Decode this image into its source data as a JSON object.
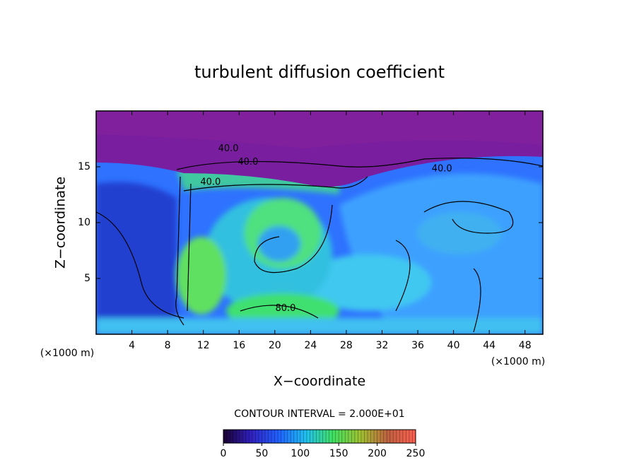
{
  "chart_data": {
    "type": "contour",
    "title": "turbulent diffusion coefficient",
    "xlabel": "X−coordinate",
    "ylabel": "Z−coordinate",
    "xunit": "(×1000 m)",
    "yunit": "(×1000 m)",
    "xlim": [
      0,
      50
    ],
    "ylim": [
      0,
      20
    ],
    "xticks": [
      4,
      8,
      12,
      16,
      20,
      24,
      28,
      32,
      36,
      40,
      44,
      48
    ],
    "yticks": [
      5,
      10,
      15
    ],
    "contour_interval_label": "CONTOUR INTERVAL = 2.000E+01",
    "colorbar": {
      "lim": [
        0,
        250
      ],
      "ticks": [
        0,
        50,
        100,
        150,
        200,
        250
      ],
      "colors": [
        "#1a0030",
        "#3020c0",
        "#2060ff",
        "#20c0f0",
        "#40e060",
        "#a0c030",
        "#c06040",
        "#ff6050"
      ]
    },
    "annotations": [
      {
        "text": "40.0",
        "x": 14.8,
        "y": 16.6
      },
      {
        "text": "40.0",
        "x": 17.0,
        "y": 15.4
      },
      {
        "text": "40.0",
        "x": 38.7,
        "y": 14.8
      },
      {
        "text": "40.0",
        "x": 12.8,
        "y": 13.6
      },
      {
        "text": "80.0",
        "x": 21.2,
        "y": 2.3
      }
    ]
  }
}
